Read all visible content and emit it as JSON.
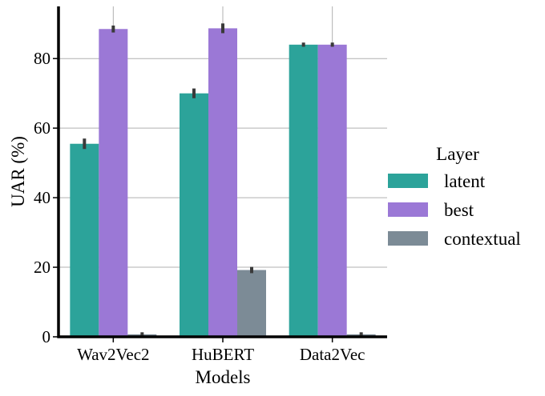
{
  "chart_data": {
    "type": "bar",
    "categories": [
      "Wav2Vec2",
      "HuBERT",
      "Data2Vec"
    ],
    "xlabel": "Models",
    "ylabel": "UAR (%)",
    "ylim": [
      0,
      95
    ],
    "yticks": [
      0,
      20,
      40,
      60,
      80
    ],
    "grid": true,
    "legend": {
      "title": "Layer",
      "placement": "right"
    },
    "series": [
      {
        "name": "latent",
        "color": "#2ca39a",
        "values": [
          55.5,
          70.0,
          84.0
        ],
        "err": [
          1.5,
          1.4,
          0.6
        ]
      },
      {
        "name": "best",
        "color": "#9b78d6",
        "values": [
          88.5,
          88.7,
          84.0
        ],
        "err": [
          1.0,
          1.4,
          0.6
        ]
      },
      {
        "name": "contextual",
        "color": "#7c8b96",
        "values": [
          0.7,
          19.2,
          0.7
        ],
        "err": [
          0.6,
          0.9,
          0.6
        ]
      }
    ]
  }
}
